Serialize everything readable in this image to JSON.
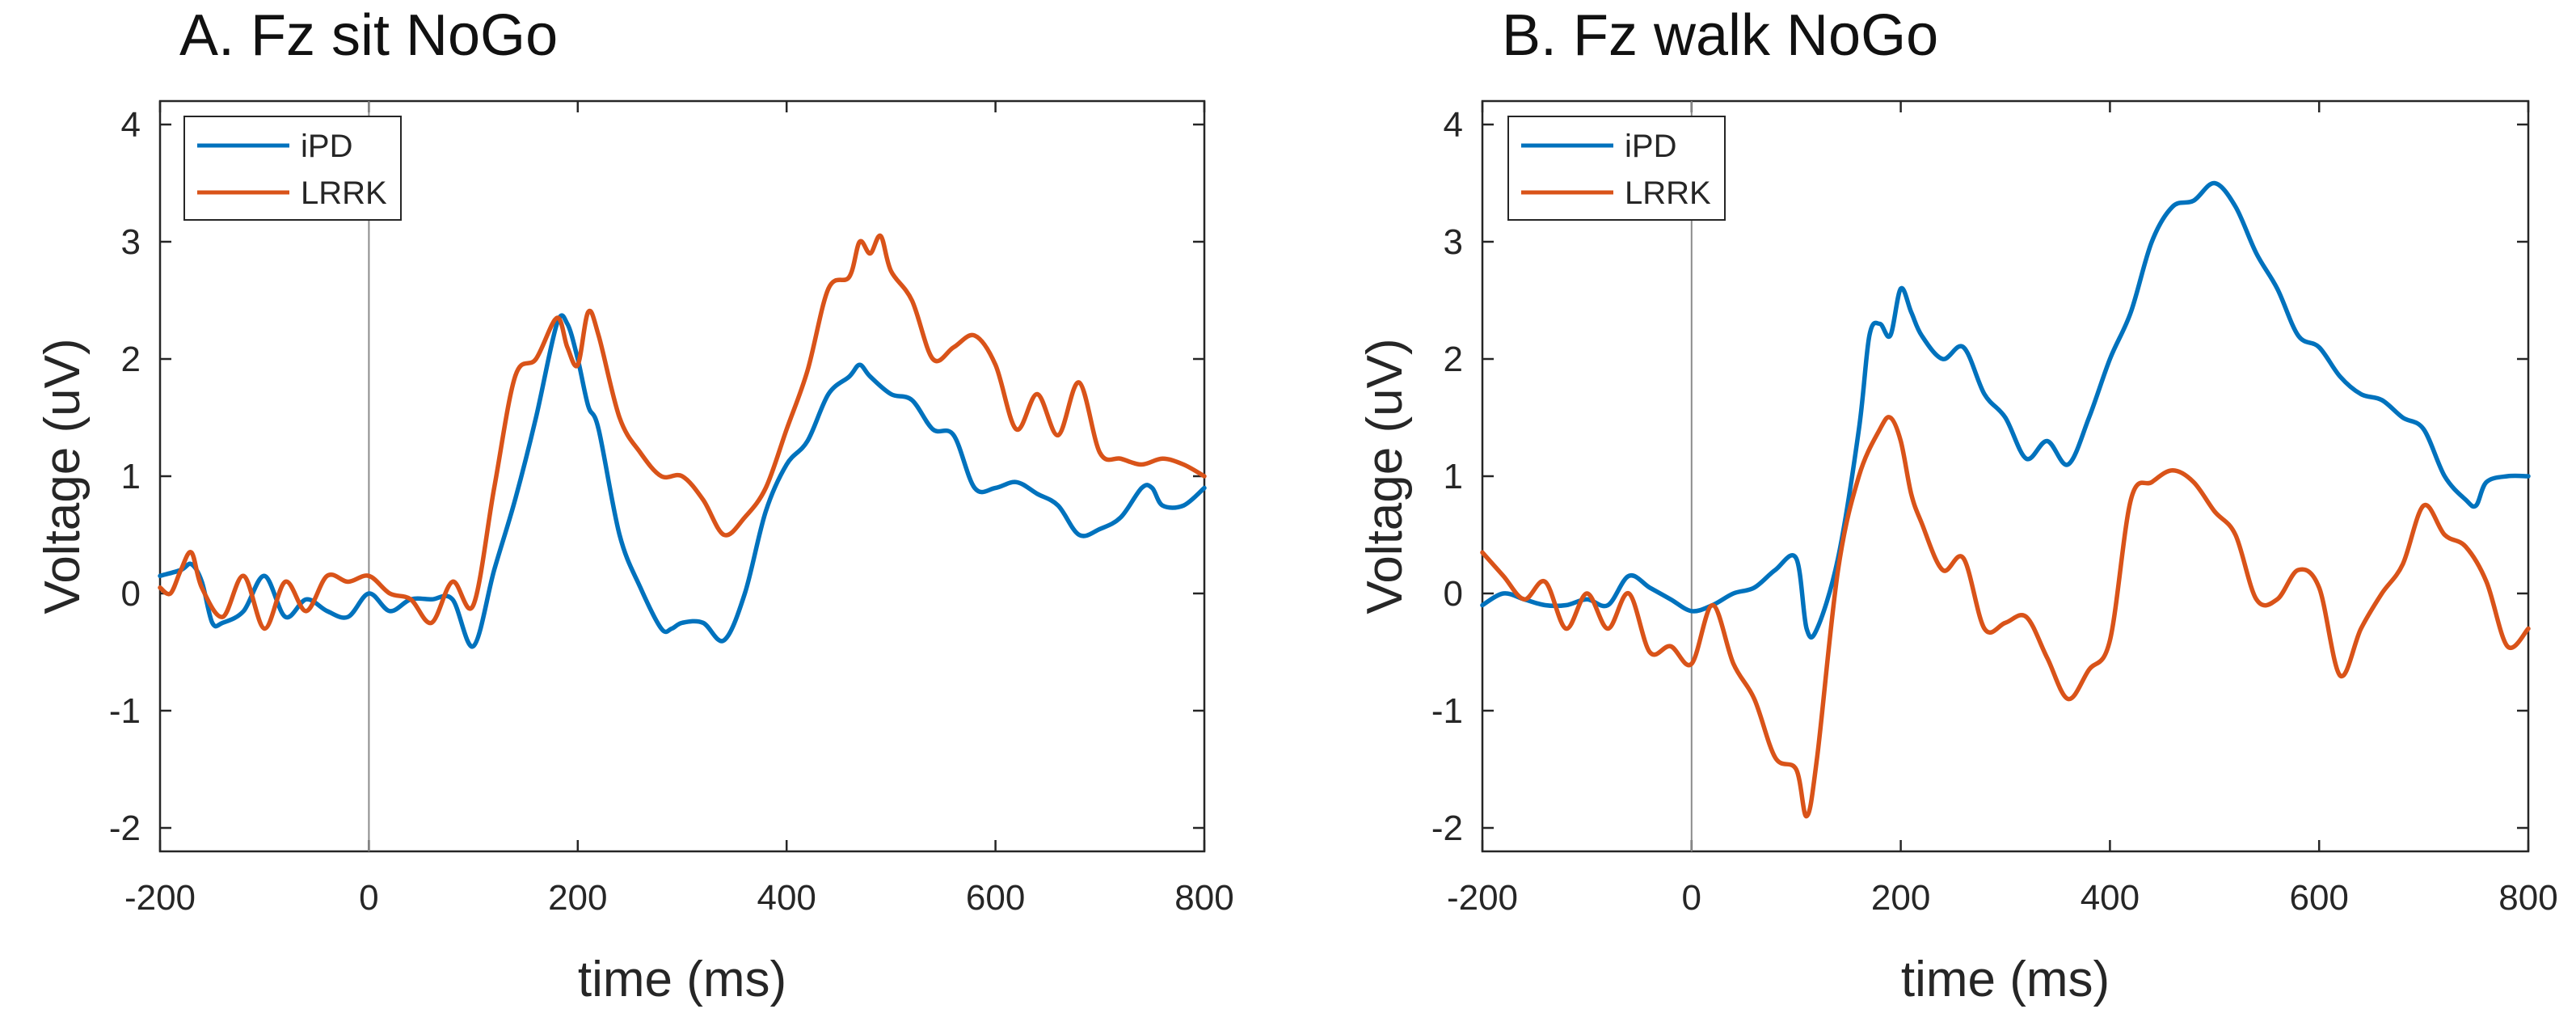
{
  "colors": {
    "iPD": "#0072BD",
    "LRRK": "#D95319",
    "axis": "#262626",
    "zero_line": "#8c8c8c"
  },
  "chart_data": [
    {
      "type": "line",
      "title": "A. Fz sit NoGo",
      "xlabel": "time (ms)",
      "ylabel": "Voltage (uV)",
      "xlim": [
        -200,
        800
      ],
      "ylim": [
        -2.2,
        4.2
      ],
      "xticks": [
        -200,
        0,
        200,
        400,
        600,
        800
      ],
      "yticks": [
        -2,
        -1,
        0,
        1,
        2,
        3,
        4
      ],
      "zero_line_x": 0,
      "legend": [
        "iPD",
        "LRRK"
      ],
      "legend_position": "top-left",
      "series": [
        {
          "name": "iPD",
          "color": "#0072BD",
          "x": [
            -200,
            -180,
            -170,
            -160,
            -150,
            -140,
            -120,
            -100,
            -80,
            -60,
            -40,
            -20,
            0,
            20,
            40,
            60,
            80,
            100,
            120,
            140,
            160,
            180,
            190,
            200,
            210,
            220,
            240,
            260,
            280,
            290,
            300,
            320,
            340,
            360,
            380,
            400,
            420,
            440,
            460,
            470,
            480,
            500,
            520,
            540,
            560,
            580,
            600,
            620,
            640,
            660,
            680,
            700,
            720,
            740,
            750,
            760,
            780,
            800
          ],
          "values": [
            0.15,
            0.2,
            0.25,
            0.1,
            -0.25,
            -0.25,
            -0.15,
            0.15,
            -0.2,
            -0.05,
            -0.15,
            -0.2,
            0.0,
            -0.15,
            -0.05,
            -0.05,
            -0.05,
            -0.45,
            0.2,
            0.8,
            1.5,
            2.3,
            2.3,
            2.0,
            1.6,
            1.4,
            0.5,
            0.05,
            -0.3,
            -0.3,
            -0.25,
            -0.25,
            -0.4,
            0.0,
            0.7,
            1.1,
            1.3,
            1.7,
            1.85,
            1.95,
            1.85,
            1.7,
            1.65,
            1.4,
            1.35,
            0.9,
            0.9,
            0.95,
            0.85,
            0.75,
            0.5,
            0.55,
            0.65,
            0.9,
            0.9,
            0.75,
            0.75,
            0.9
          ]
        },
        {
          "name": "LRRK",
          "color": "#D95319",
          "x": [
            -200,
            -190,
            -180,
            -170,
            -160,
            -140,
            -120,
            -100,
            -80,
            -60,
            -40,
            -20,
            0,
            20,
            40,
            60,
            80,
            100,
            120,
            140,
            160,
            180,
            190,
            200,
            210,
            220,
            240,
            260,
            280,
            300,
            320,
            340,
            360,
            380,
            400,
            420,
            440,
            460,
            470,
            480,
            490,
            500,
            520,
            540,
            560,
            580,
            600,
            620,
            640,
            660,
            680,
            700,
            720,
            740,
            760,
            780,
            800
          ],
          "values": [
            0.05,
            0.0,
            0.2,
            0.35,
            0.05,
            -0.2,
            0.15,
            -0.3,
            0.1,
            -0.15,
            0.15,
            0.1,
            0.15,
            0.0,
            -0.05,
            -0.25,
            0.1,
            -0.1,
            0.9,
            1.85,
            2.0,
            2.35,
            2.1,
            1.95,
            2.4,
            2.2,
            1.5,
            1.2,
            1.0,
            1.0,
            0.8,
            0.5,
            0.65,
            0.9,
            1.4,
            1.9,
            2.6,
            2.7,
            3.0,
            2.9,
            3.05,
            2.75,
            2.5,
            2.0,
            2.1,
            2.2,
            1.95,
            1.4,
            1.7,
            1.35,
            1.8,
            1.2,
            1.15,
            1.1,
            1.15,
            1.1,
            1.0
          ]
        }
      ]
    },
    {
      "type": "line",
      "title": "B. Fz walk NoGo",
      "xlabel": "time (ms)",
      "ylabel": "Voltage (uV)",
      "xlim": [
        -200,
        800
      ],
      "ylim": [
        -2.2,
        4.2
      ],
      "xticks": [
        -200,
        0,
        200,
        400,
        600,
        800
      ],
      "yticks": [
        -2,
        -1,
        0,
        1,
        2,
        3,
        4
      ],
      "zero_line_x": 0,
      "legend": [
        "iPD",
        "LRRK"
      ],
      "legend_position": "top-left",
      "series": [
        {
          "name": "iPD",
          "color": "#0072BD",
          "x": [
            -200,
            -180,
            -160,
            -140,
            -120,
            -100,
            -80,
            -60,
            -40,
            -20,
            0,
            20,
            40,
            60,
            80,
            100,
            110,
            120,
            140,
            160,
            170,
            180,
            190,
            200,
            210,
            220,
            240,
            260,
            280,
            300,
            320,
            340,
            360,
            380,
            400,
            420,
            440,
            460,
            480,
            500,
            520,
            540,
            560,
            580,
            600,
            620,
            640,
            660,
            680,
            700,
            720,
            740,
            750,
            760,
            780,
            800
          ],
          "values": [
            -0.1,
            0.0,
            -0.05,
            -0.1,
            -0.1,
            -0.05,
            -0.1,
            0.15,
            0.05,
            -0.05,
            -0.15,
            -0.1,
            0.0,
            0.05,
            0.2,
            0.3,
            -0.3,
            -0.3,
            0.3,
            1.4,
            2.2,
            2.3,
            2.2,
            2.6,
            2.4,
            2.2,
            2.0,
            2.1,
            1.7,
            1.5,
            1.15,
            1.3,
            1.1,
            1.5,
            2.0,
            2.4,
            3.0,
            3.3,
            3.35,
            3.5,
            3.3,
            2.9,
            2.6,
            2.2,
            2.1,
            1.85,
            1.7,
            1.65,
            1.5,
            1.4,
            1.0,
            0.8,
            0.75,
            0.95,
            1.0,
            1.0
          ]
        },
        {
          "name": "LRRK",
          "color": "#D95319",
          "x": [
            -200,
            -180,
            -160,
            -140,
            -120,
            -100,
            -80,
            -60,
            -40,
            -20,
            0,
            20,
            40,
            60,
            80,
            100,
            110,
            120,
            140,
            160,
            180,
            190,
            200,
            210,
            220,
            240,
            260,
            280,
            300,
            320,
            340,
            360,
            380,
            400,
            420,
            440,
            460,
            480,
            500,
            520,
            540,
            560,
            580,
            600,
            620,
            640,
            660,
            680,
            700,
            720,
            740,
            760,
            780,
            800
          ],
          "values": [
            0.35,
            0.15,
            -0.05,
            0.1,
            -0.3,
            0.0,
            -0.3,
            0.0,
            -0.5,
            -0.45,
            -0.6,
            -0.1,
            -0.6,
            -0.9,
            -1.4,
            -1.5,
            -1.9,
            -1.4,
            0.2,
            1.0,
            1.4,
            1.5,
            1.3,
            0.85,
            0.6,
            0.2,
            0.3,
            -0.3,
            -0.25,
            -0.2,
            -0.55,
            -0.9,
            -0.65,
            -0.4,
            0.8,
            0.95,
            1.05,
            0.95,
            0.7,
            0.5,
            -0.05,
            -0.05,
            0.2,
            0.05,
            -0.7,
            -0.3,
            0.0,
            0.25,
            0.75,
            0.5,
            0.4,
            0.1,
            -0.45,
            -0.3
          ]
        }
      ]
    }
  ]
}
